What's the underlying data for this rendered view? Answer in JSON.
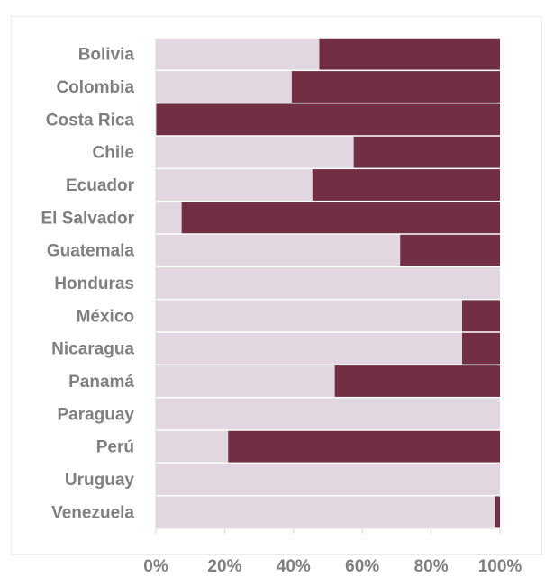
{
  "chart_data": {
    "type": "bar",
    "orientation": "horizontal",
    "stacked": true,
    "categories": [
      "Bolivia",
      "Colombia",
      "Costa Rica",
      "Chile",
      "Ecuador",
      "El Salvador",
      "Guatemala",
      "Honduras",
      "México",
      "Nicaragua",
      "Panamá",
      "Paraguay",
      "Perú",
      "Uruguay",
      "Venezuela"
    ],
    "series": [
      {
        "values": [
          47.5,
          39.5,
          0,
          57.5,
          45.5,
          7.5,
          71,
          100,
          89,
          89,
          52,
          100,
          21,
          100,
          98.5
        ]
      },
      {
        "values": [
          52.5,
          60.5,
          100,
          42.5,
          54.5,
          92.5,
          29,
          0,
          11,
          11,
          48,
          0,
          79,
          0,
          1.5
        ]
      }
    ],
    "xlim": [
      0,
      100
    ],
    "x_ticks": [
      "0%",
      "20%",
      "40%",
      "60%",
      "80%",
      "100%"
    ],
    "grid": false,
    "colors": {
      "light": "#e2d7e0",
      "dark": "#722f43",
      "axis": "#d9d9d9",
      "text": "#7f7f7f"
    }
  }
}
